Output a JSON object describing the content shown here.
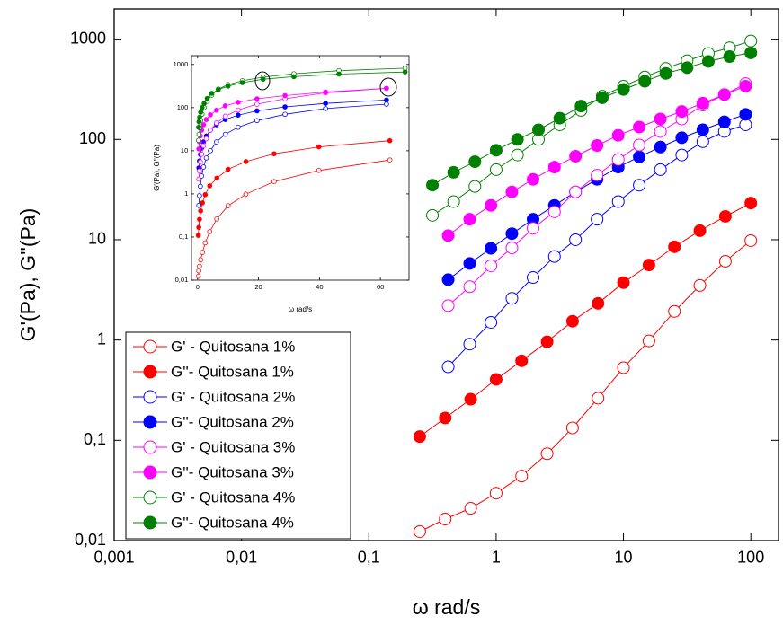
{
  "chart_data": [
    {
      "type": "line",
      "xscale": "log",
      "yscale": "log",
      "xlabel": "ω rad/s",
      "ylabel": "G'(Pa), G''(Pa)",
      "xlim": [
        0.001,
        165
      ],
      "ylim": [
        0.01,
        2000
      ],
      "xticks": [
        {
          "value": 0.001,
          "label": "0,001"
        },
        {
          "value": 0.01,
          "label": "0,01"
        },
        {
          "value": 0.1,
          "label": "0,1"
        },
        1,
        10,
        100
      ],
      "yticks": [
        {
          "value": 0.01,
          "label": "0,01"
        },
        {
          "value": 0.1,
          "label": "0,1"
        },
        1,
        10,
        100,
        1000
      ],
      "legend": "lower left",
      "series": [
        {
          "name": "G' - Quitosana 1%",
          "color": "#ff0000",
          "filled": false,
          "x": [
            0.251,
            0.398,
            0.631,
            1,
            1.585,
            2.512,
            3.981,
            6.31,
            10,
            15.85,
            25.12,
            39.81,
            63.1,
            100
          ],
          "values": [
            0.0123,
            0.0164,
            0.021,
            0.0297,
            0.044,
            0.0735,
            0.133,
            0.263,
            0.53,
            0.98,
            1.93,
            3.5,
            6.1,
            9.8
          ]
        },
        {
          "name": "G''- Quitosana 1%",
          "color": "#ff0000",
          "filled": true,
          "x": [
            0.251,
            0.398,
            0.631,
            1,
            1.585,
            2.512,
            3.981,
            6.31,
            10,
            15.85,
            25.12,
            39.81,
            63.1,
            100
          ],
          "values": [
            0.109,
            0.167,
            0.257,
            0.405,
            0.62,
            0.96,
            1.54,
            2.32,
            3.73,
            5.6,
            8.5,
            12.3,
            17.1,
            23.2
          ]
        },
        {
          "name": "G' - Quitosana 2%",
          "color": "#0000ff",
          "filled": false,
          "x": [
            0.42,
            0.62,
            0.91,
            1.33,
            1.95,
            2.87,
            4.2,
            6.2,
            9.1,
            13.3,
            19.5,
            28.7,
            42,
            62,
            91
          ],
          "values": [
            0.54,
            0.91,
            1.5,
            2.6,
            4.2,
            6.8,
            10,
            16,
            24,
            35,
            50,
            70,
            95,
            120,
            140
          ]
        },
        {
          "name": "G''- Quitosana 2%",
          "color": "#0000ff",
          "filled": true,
          "x": [
            0.42,
            0.62,
            0.91,
            1.33,
            1.95,
            2.87,
            4.2,
            6.2,
            9.1,
            13.3,
            19.5,
            28.7,
            42,
            62,
            91
          ],
          "values": [
            4.0,
            5.8,
            8.2,
            11.5,
            16,
            22,
            30,
            40,
            53,
            67,
            84,
            104,
            125,
            150,
            178
          ]
        },
        {
          "name": "G' - Quitosana 3%",
          "color": "#ff00ff",
          "filled": false,
          "x": [
            0.42,
            0.62,
            0.91,
            1.33,
            1.95,
            2.87,
            4.2,
            6.2,
            9.1,
            13.3,
            19.5,
            28.7,
            42,
            62,
            91
          ],
          "values": [
            2.2,
            3.4,
            5.5,
            8.3,
            13,
            19,
            30,
            44,
            63,
            88,
            120,
            160,
            220,
            280,
            360
          ]
        },
        {
          "name": "G''- Quitosana 3%",
          "color": "#ff00ff",
          "filled": true,
          "x": [
            0.42,
            0.62,
            0.91,
            1.33,
            1.95,
            2.87,
            4.2,
            6.2,
            9.1,
            13.3,
            19.5,
            28.7,
            42,
            62,
            91
          ],
          "values": [
            11,
            16,
            22,
            30,
            40,
            53,
            68,
            87,
            110,
            133,
            160,
            190,
            230,
            280,
            340
          ]
        },
        {
          "name": "G' - Quitosana 4%",
          "color": "#008000",
          "filled": false,
          "x": [
            0.316,
            0.464,
            0.681,
            1,
            1.47,
            2.15,
            3.16,
            4.64,
            6.81,
            10,
            14.7,
            21.5,
            31.6,
            46.4,
            68.1,
            100
          ],
          "values": [
            17.5,
            24,
            34,
            50,
            70,
            100,
            140,
            195,
            270,
            340,
            420,
            510,
            610,
            720,
            820,
            960
          ]
        },
        {
          "name": "G''- Quitosana 4%",
          "color": "#008000",
          "filled": true,
          "x": [
            0.316,
            0.464,
            0.681,
            1,
            1.47,
            2.15,
            3.16,
            4.64,
            6.81,
            10,
            14.7,
            21.5,
            31.6,
            46.4,
            68.1,
            100
          ],
          "values": [
            35,
            47,
            60,
            78,
            100,
            125,
            163,
            215,
            260,
            315,
            380,
            455,
            520,
            600,
            670,
            730
          ]
        }
      ]
    },
    {
      "type": "line",
      "xscale": "linear",
      "yscale": "log",
      "xlabel": "ω rad/s",
      "ylabel": "G'(Pa), G''(Pa)",
      "xlim": [
        -2,
        69.4
      ],
      "ylim": [
        0.01,
        1600
      ],
      "xticks": [
        0,
        20,
        40,
        60
      ],
      "yticks": [
        {
          "value": 0.01,
          "label": "0,01"
        },
        {
          "value": 0.1,
          "label": "0,1"
        },
        1,
        10,
        100,
        1000
      ],
      "series": [
        {
          "color": "#ff0000",
          "filled": false,
          "x": [
            0.251,
            0.398,
            0.631,
            1,
            1.585,
            2.512,
            3.981,
            6.31,
            10,
            15.85,
            25.12,
            39.81,
            63.1
          ],
          "values": [
            0.0123,
            0.0164,
            0.021,
            0.0297,
            0.044,
            0.0735,
            0.133,
            0.263,
            0.53,
            0.98,
            1.93,
            3.5,
            6.1
          ]
        },
        {
          "color": "#ff0000",
          "filled": true,
          "x": [
            0.251,
            0.398,
            0.631,
            1,
            1.585,
            2.512,
            3.981,
            6.31,
            10,
            15.85,
            25.12,
            39.81,
            63.1
          ],
          "values": [
            0.109,
            0.167,
            0.257,
            0.405,
            0.62,
            0.96,
            1.54,
            2.32,
            3.73,
            5.6,
            8.5,
            12.3,
            17.1
          ]
        },
        {
          "color": "#0000ff",
          "filled": false,
          "x": [
            0.42,
            0.62,
            0.91,
            1.33,
            1.95,
            2.87,
            4.2,
            6.2,
            9.1,
            13.3,
            19.5,
            28.7,
            42,
            62
          ],
          "values": [
            0.54,
            0.91,
            1.5,
            2.6,
            4.2,
            6.8,
            10,
            16,
            24,
            35,
            50,
            70,
            95,
            120
          ]
        },
        {
          "color": "#0000ff",
          "filled": true,
          "x": [
            0.42,
            0.62,
            0.91,
            1.33,
            1.95,
            2.87,
            4.2,
            6.2,
            9.1,
            13.3,
            19.5,
            28.7,
            42,
            62
          ],
          "values": [
            4.0,
            5.8,
            8.2,
            11.5,
            16,
            22,
            30,
            40,
            53,
            67,
            84,
            104,
            125,
            150
          ]
        },
        {
          "color": "#ff00ff",
          "filled": false,
          "x": [
            0.42,
            0.62,
            0.91,
            1.33,
            1.95,
            2.87,
            4.2,
            6.2,
            9.1,
            13.3,
            19.5,
            28.7,
            42,
            62
          ],
          "values": [
            2.2,
            3.4,
            5.5,
            8.3,
            13,
            19,
            30,
            44,
            63,
            88,
            120,
            160,
            220,
            280
          ]
        },
        {
          "color": "#ff00ff",
          "filled": true,
          "x": [
            0.42,
            0.62,
            0.91,
            1.33,
            1.95,
            2.87,
            4.2,
            6.2,
            9.1,
            13.3,
            19.5,
            28.7,
            42,
            62
          ],
          "values": [
            11,
            16,
            22,
            30,
            40,
            53,
            68,
            87,
            110,
            133,
            160,
            190,
            230,
            280
          ]
        },
        {
          "color": "#008000",
          "filled": false,
          "x": [
            0.316,
            0.464,
            0.681,
            1,
            1.47,
            2.15,
            3.16,
            4.64,
            6.81,
            10,
            14.7,
            21.5,
            31.6,
            46.4,
            68.1
          ],
          "values": [
            17.5,
            24,
            34,
            50,
            70,
            100,
            140,
            195,
            270,
            340,
            420,
            510,
            610,
            720,
            820
          ]
        },
        {
          "color": "#008000",
          "filled": true,
          "x": [
            0.316,
            0.464,
            0.681,
            1,
            1.47,
            2.15,
            3.16,
            4.64,
            6.81,
            10,
            14.7,
            21.5,
            31.6,
            46.4,
            68.1
          ],
          "values": [
            35,
            47,
            60,
            78,
            100,
            125,
            163,
            215,
            260,
            315,
            380,
            455,
            520,
            600,
            670
          ]
        }
      ]
    }
  ]
}
